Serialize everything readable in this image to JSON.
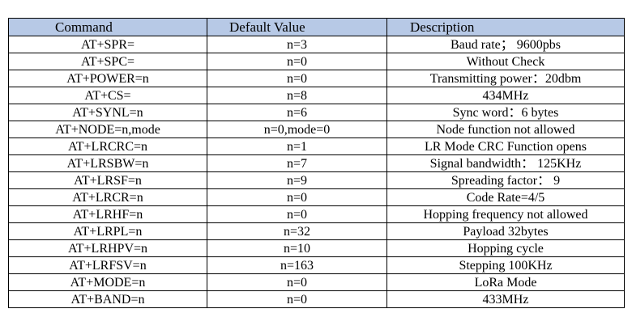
{
  "table": {
    "headers": [
      "Command",
      "Default Value",
      "Description"
    ],
    "rows": [
      {
        "command": "AT+SPR=",
        "default": "n=3",
        "description": "Baud rate； 9600pbs"
      },
      {
        "command": "AT+SPC=",
        "default": "n=0",
        "description": "Without Check"
      },
      {
        "command": "AT+POWER=n",
        "default": "n=0",
        "description": "Transmitting power：20dbm"
      },
      {
        "command": "AT+CS=",
        "default": "n=8",
        "description": "434MHz"
      },
      {
        "command": "AT+SYNL=n",
        "default": "n=6",
        "description": "Sync word：6 bytes"
      },
      {
        "command": "AT+NODE=n,mode",
        "default": "n=0,mode=0",
        "description": "Node function not allowed"
      },
      {
        "command": "AT+LRCRC=n",
        "default": "n=1",
        "description": "LR Mode CRC Function opens"
      },
      {
        "command": "AT+LRSBW=n",
        "default": "n=7",
        "description": "Signal bandwidth： 125KHz"
      },
      {
        "command": "AT+LRSF=n",
        "default": "n=9",
        "description": "Spreading factor： 9"
      },
      {
        "command": "AT+LRCR=n",
        "default": "n=0",
        "description": "Code Rate=4/5"
      },
      {
        "command": "AT+LRHF=n",
        "default": "n=0",
        "description": "Hopping frequency not allowed"
      },
      {
        "command": "AT+LRPL=n",
        "default": "n=32",
        "description": "Payload 32bytes"
      },
      {
        "command": "AT+LRHPV=n",
        "default": "n=10",
        "description": "Hopping cycle"
      },
      {
        "command": "AT+LRFSV=n",
        "default": "n=163",
        "description": "Stepping 100KHz"
      },
      {
        "command": "AT+MODE=n",
        "default": "n=0",
        "description": "LoRa Mode"
      },
      {
        "command": "AT+BAND=n",
        "default": "n=0",
        "description": "433MHz"
      }
    ]
  },
  "colors": {
    "header_background": "#b7c9e6",
    "border": "#000000"
  }
}
